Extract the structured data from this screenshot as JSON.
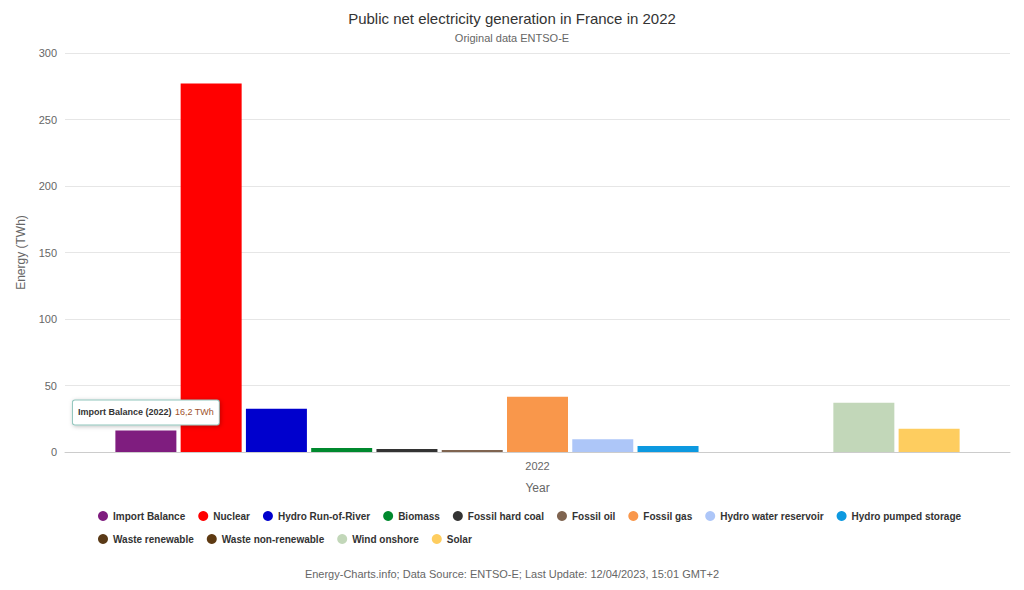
{
  "chart_data": {
    "type": "bar",
    "title": "Public net electricity generation in France in 2022",
    "subtitle": "Original data ENTSO-E",
    "source": "Energy-Charts.info; Data Source: ENTSO-E; Last Update: 12/04/2023, 15:01 GMT+2",
    "x_label": "Year",
    "y_label": "Energy (TWh)",
    "categories": [
      "2022"
    ],
    "series": [
      {
        "name": "Import Balance",
        "color": "#7f1d7f",
        "values": [
          16.2
        ]
      },
      {
        "name": "Nuclear",
        "color": "#ff0000",
        "values": [
          277
        ]
      },
      {
        "name": "Hydro Run-of-River",
        "color": "#0000cd",
        "values": [
          32.5
        ]
      },
      {
        "name": "Biomass",
        "color": "#00892e",
        "values": [
          3
        ]
      },
      {
        "name": "Fossil hard coal",
        "color": "#333333",
        "values": [
          2.2
        ]
      },
      {
        "name": "Fossil oil",
        "color": "#7f6450",
        "values": [
          1.5
        ]
      },
      {
        "name": "Fossil gas",
        "color": "#f9974b",
        "values": [
          41.5
        ]
      },
      {
        "name": "Hydro water reservoir",
        "color": "#adc6f8",
        "values": [
          9.5
        ]
      },
      {
        "name": "Hydro pumped storage",
        "color": "#0d99e0",
        "values": [
          4.5
        ]
      },
      {
        "name": "Waste renewable",
        "color": "#5a3a17",
        "values": [
          null
        ]
      },
      {
        "name": "Waste non-renewable",
        "color": "#5e3a12",
        "values": [
          null
        ]
      },
      {
        "name": "Wind onshore",
        "color": "#c2d7b9",
        "values": [
          37
        ]
      },
      {
        "name": "Solar",
        "color": "#fecd5f",
        "values": [
          17.5
        ]
      }
    ],
    "ylim": [
      0,
      300
    ],
    "yticks": [
      0,
      50,
      100,
      150,
      200,
      250,
      300
    ],
    "grid": true,
    "legend": "bottom",
    "annotation": {
      "series": "Import Balance",
      "label": "Import Balance (2022)",
      "value_label": "16,2 TWh"
    }
  }
}
